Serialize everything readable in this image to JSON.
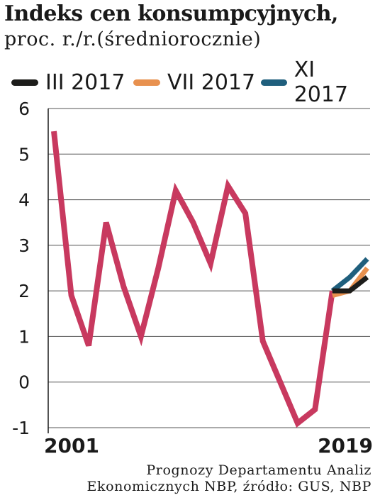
{
  "header": {
    "title": "Indeks cen konsumpcyjnych,",
    "subtitle": "proc. r./r.(średniorocznie)"
  },
  "legend": [
    {
      "label": "III 2017",
      "color": "#1d1d1b"
    },
    {
      "label": "VII 2017",
      "color": "#e8914f"
    },
    {
      "label": "XI 2017",
      "color": "#1f5f7d"
    }
  ],
  "source_lines": [
    "Prognozy Departamentu Analiz",
    "Ekonomicznych NBP, źródło: GUS, NBP"
  ],
  "chart_data": {
    "type": "line",
    "title": "Indeks cen konsumpcyjnych,",
    "subtitle": "proc. r./r.(średniorocznie)",
    "xlabel": "",
    "ylabel": "",
    "x_tick_labels": [
      "2001",
      "2019"
    ],
    "y_ticks": [
      -1,
      0,
      1,
      2,
      3,
      4,
      5,
      6
    ],
    "ylim": [
      -1,
      6
    ],
    "xlim": [
      2001,
      2019
    ],
    "grid": "horizontal",
    "legend_position": "top",
    "series": [
      {
        "color": "#c8395f",
        "x": [
          2001,
          2002,
          2003,
          2004,
          2005,
          2006,
          2007,
          2008,
          2009,
          2010,
          2011,
          2012,
          2013,
          2014,
          2015,
          2016,
          2017
        ],
        "values": [
          5.5,
          1.9,
          0.8,
          3.5,
          2.1,
          1.0,
          2.5,
          4.2,
          3.5,
          2.6,
          4.3,
          3.7,
          0.9,
          0.0,
          -0.9,
          -0.6,
          2.0
        ]
      },
      {
        "name": "III 2017",
        "color": "#1d1d1b",
        "x": [
          2017,
          2018,
          2019
        ],
        "values": [
          2.0,
          2.0,
          2.3
        ]
      },
      {
        "name": "VII 2017",
        "color": "#e8914f",
        "x": [
          2017,
          2018,
          2019
        ],
        "values": [
          1.9,
          2.0,
          2.5
        ]
      },
      {
        "name": "XI 2017",
        "color": "#1f5f7d",
        "x": [
          2017,
          2018,
          2019
        ],
        "values": [
          2.0,
          2.3,
          2.7
        ]
      }
    ]
  }
}
